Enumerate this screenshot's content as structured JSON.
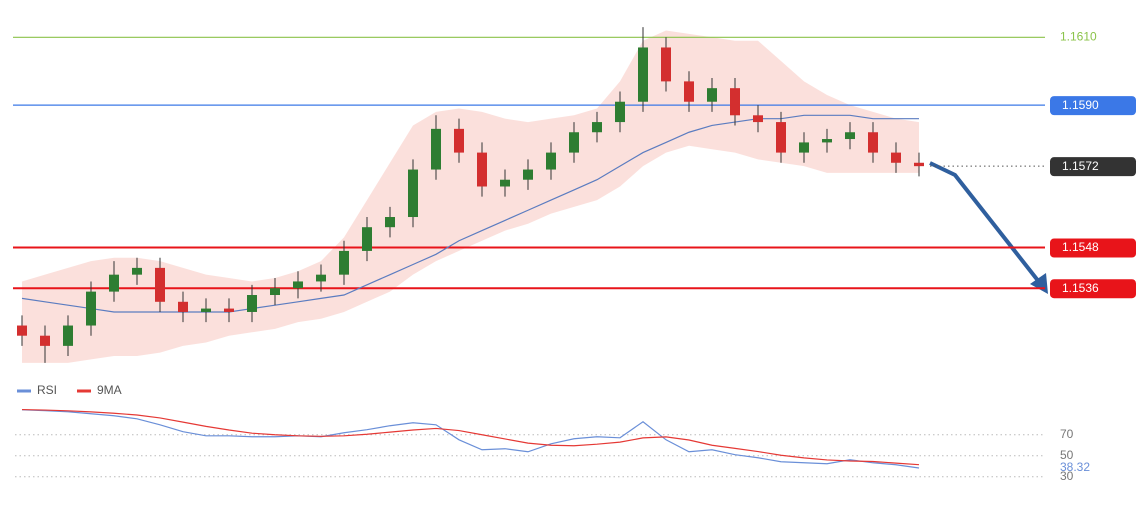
{
  "chart_data": [
    {
      "type": "candlestick",
      "open": [
        1.1525,
        1.1522,
        1.1519,
        1.1525,
        1.1535,
        1.154,
        1.1542,
        1.1532,
        1.1529,
        1.153,
        1.1529,
        1.1534,
        1.1536,
        1.1538,
        1.154,
        1.1547,
        1.1554,
        1.1557,
        1.1571,
        1.1583,
        1.1576,
        1.1566,
        1.1568,
        1.1571,
        1.1576,
        1.1582,
        1.1585,
        1.1591,
        1.1607,
        1.1597,
        1.1591,
        1.1595,
        1.1587,
        1.1585,
        1.1576,
        1.1579,
        1.158,
        1.1582,
        1.1576,
        1.1573
      ],
      "high": [
        1.1528,
        1.1525,
        1.1528,
        1.1538,
        1.1544,
        1.1545,
        1.1545,
        1.1535,
        1.1533,
        1.1533,
        1.1537,
        1.1539,
        1.1541,
        1.1543,
        1.155,
        1.1557,
        1.156,
        1.1574,
        1.1587,
        1.1586,
        1.1579,
        1.1571,
        1.1574,
        1.1579,
        1.1585,
        1.1588,
        1.1594,
        1.1613,
        1.161,
        1.16,
        1.1598,
        1.1598,
        1.159,
        1.1588,
        1.1582,
        1.1583,
        1.1585,
        1.1585,
        1.1579,
        1.1576
      ],
      "low": [
        1.1519,
        1.1514,
        1.1516,
        1.1522,
        1.1532,
        1.1537,
        1.1529,
        1.1526,
        1.1526,
        1.1526,
        1.1526,
        1.1531,
        1.1533,
        1.1535,
        1.1537,
        1.1544,
        1.1551,
        1.1554,
        1.1568,
        1.1573,
        1.1563,
        1.1563,
        1.1565,
        1.1568,
        1.1573,
        1.1579,
        1.1582,
        1.1588,
        1.1594,
        1.1588,
        1.1588,
        1.1584,
        1.1582,
        1.1573,
        1.1573,
        1.1576,
        1.1577,
        1.1573,
        1.157,
        1.1569
      ],
      "close": [
        1.1522,
        1.1519,
        1.1525,
        1.1535,
        1.154,
        1.1542,
        1.1532,
        1.1529,
        1.153,
        1.1529,
        1.1534,
        1.1536,
        1.1538,
        1.154,
        1.1547,
        1.1554,
        1.1557,
        1.1571,
        1.1583,
        1.1576,
        1.1566,
        1.1568,
        1.1571,
        1.1576,
        1.1582,
        1.1585,
        1.1591,
        1.1607,
        1.1597,
        1.1591,
        1.1595,
        1.1587,
        1.1585,
        1.1576,
        1.1579,
        1.158,
        1.1582,
        1.1576,
        1.1573,
        1.1572
      ],
      "up_color": "#2e7d32",
      "down_color": "#d32f2f",
      "band": {
        "color": "#f8c7c0",
        "upper": [
          1.1538,
          1.154,
          1.1542,
          1.1544,
          1.1545,
          1.1545,
          1.1544,
          1.1542,
          1.154,
          1.1539,
          1.1538,
          1.1539,
          1.1541,
          1.1544,
          1.1551,
          1.1562,
          1.1573,
          1.1584,
          1.1588,
          1.1589,
          1.1588,
          1.1586,
          1.1585,
          1.1586,
          1.1587,
          1.1589,
          1.1597,
          1.1609,
          1.1612,
          1.1611,
          1.161,
          1.1609,
          1.1609,
          1.1603,
          1.1597,
          1.1593,
          1.159,
          1.1588,
          1.1586,
          1.1585
        ],
        "lower": [
          1.1514,
          1.1514,
          1.1514,
          1.1515,
          1.1516,
          1.1516,
          1.1517,
          1.1519,
          1.152,
          1.1522,
          1.1523,
          1.1524,
          1.1526,
          1.1527,
          1.1529,
          1.1532,
          1.1535,
          1.154,
          1.1544,
          1.1547,
          1.155,
          1.1553,
          1.1555,
          1.1558,
          1.156,
          1.1562,
          1.1566,
          1.1572,
          1.1576,
          1.1578,
          1.1577,
          1.1576,
          1.1574,
          1.1573,
          1.1572,
          1.157,
          1.157,
          1.157,
          1.157,
          1.157
        ]
      },
      "ma": {
        "color": "#5b7cc0",
        "values": [
          1.1533,
          1.1532,
          1.1531,
          1.153,
          1.1529,
          1.1529,
          1.1529,
          1.1529,
          1.1529,
          1.1529,
          1.153,
          1.1531,
          1.1532,
          1.1533,
          1.1534,
          1.1537,
          1.154,
          1.1543,
          1.1546,
          1.155,
          1.1553,
          1.1556,
          1.1559,
          1.1562,
          1.1565,
          1.1568,
          1.1572,
          1.1576,
          1.1579,
          1.1582,
          1.1584,
          1.1585,
          1.1586,
          1.1586,
          1.1587,
          1.1587,
          1.1587,
          1.1586,
          1.1586,
          1.1586
        ]
      },
      "ylim": [
        1.1511,
        1.1621
      ],
      "levels": [
        {
          "value": 1.161,
          "label": "1.1610",
          "color": "#8bc34a",
          "style": "plain"
        },
        {
          "value": 1.159,
          "label": "1.1590",
          "color": "#3b78e7",
          "style": "tag"
        },
        {
          "value": 1.1572,
          "label": "1.1572",
          "color": "#333333",
          "style": "current"
        },
        {
          "value": 1.1548,
          "label": "1.1548",
          "color": "#e8141a",
          "style": "tag"
        },
        {
          "value": 1.1536,
          "label": "1.1536",
          "color": "#e8141a",
          "style": "tag"
        }
      ]
    },
    {
      "type": "line",
      "series": [
        {
          "name": "RSI",
          "color": "#6a8fd8",
          "values": [
            93.8,
            92.9,
            91.9,
            90,
            88.1,
            85.2,
            79.5,
            72.9,
            69,
            69,
            68.1,
            68.1,
            69,
            68.1,
            71.9,
            74.8,
            78.6,
            81.4,
            79.5,
            65.2,
            55.7,
            56.7,
            53.8,
            61.4,
            66.2,
            68.1,
            67.1,
            82.4,
            65.2,
            53.8,
            55.7,
            51,
            48.1,
            44.3,
            43.3,
            42.4,
            46.2,
            43.3,
            41.4,
            38.32
          ]
        },
        {
          "name": "9MA",
          "color": "#e53935",
          "values": [
            94,
            93.5,
            92.8,
            91.8,
            90.5,
            88.8,
            86,
            82,
            78,
            74.5,
            71.5,
            70,
            69,
            68.5,
            69,
            70.5,
            72.5,
            74.5,
            76,
            74,
            70,
            66,
            62,
            60,
            59.5,
            61,
            63,
            67,
            68,
            65,
            60,
            57,
            54,
            50.5,
            48,
            46,
            45,
            44.5,
            43,
            41.5
          ]
        }
      ],
      "ylim": [
        25,
        105
      ],
      "yticks": [
        70,
        50,
        30
      ],
      "grid": true,
      "legend": "top-left"
    }
  ]
}
